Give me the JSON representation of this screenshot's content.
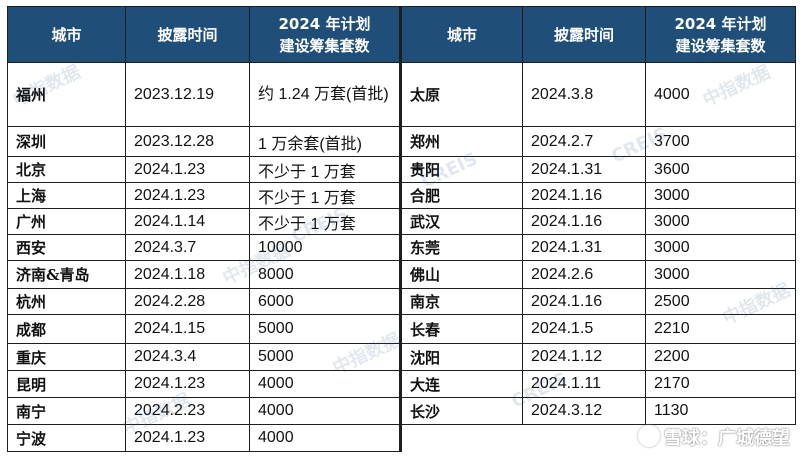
{
  "headers": {
    "city": "城市",
    "date": "披露时间",
    "plan_line1": "2024 年计划",
    "plan_line2": "建设筹集套数"
  },
  "left_rows": [
    {
      "city": "福州",
      "date": "2023.12.19",
      "plan": "约 1.24 万套(首批)"
    },
    {
      "city": "深圳",
      "date": "2023.12.28",
      "plan": "1 万余套(首批)"
    },
    {
      "city": "北京",
      "date": "2024.1.23",
      "plan": "不少于 1 万套"
    },
    {
      "city": "上海",
      "date": "2024.1.23",
      "plan": "不少于 1 万套"
    },
    {
      "city": "广州",
      "date": "2024.1.14",
      "plan": "不少于 1 万套"
    },
    {
      "city": "西安",
      "date": "2024.3.7",
      "plan": "10000"
    },
    {
      "city": "济南&青岛",
      "date": "2024.1.18",
      "plan": "8000"
    },
    {
      "city": "杭州",
      "date": "2024.2.28",
      "plan": "6000"
    },
    {
      "city": "成都",
      "date": "2024.1.15",
      "plan": "5000"
    },
    {
      "city": "重庆",
      "date": "2024.3.4",
      "plan": "5000"
    },
    {
      "city": "昆明",
      "date": "2024.1.23",
      "plan": "4000"
    },
    {
      "city": "南宁",
      "date": "2024.2.23",
      "plan": "4000"
    },
    {
      "city": "宁波",
      "date": "2024.1.23",
      "plan": "4000"
    }
  ],
  "right_rows": [
    {
      "city": "太原",
      "date": "2024.3.8",
      "plan": "4000"
    },
    {
      "city": "郑州",
      "date": "2024.2.7",
      "plan": "3700"
    },
    {
      "city": "贵阳",
      "date": "2024.1.31",
      "plan": "3600"
    },
    {
      "city": "合肥",
      "date": "2024.1.16",
      "plan": "3000"
    },
    {
      "city": "武汉",
      "date": "2024.1.16",
      "plan": "3000"
    },
    {
      "city": "东莞",
      "date": "2024.1.31",
      "plan": "3000"
    },
    {
      "city": "佛山",
      "date": "2024.2.6",
      "plan": "3000"
    },
    {
      "city": "南京",
      "date": "2024.1.16",
      "plan": "2500"
    },
    {
      "city": "长春",
      "date": "2024.1.5",
      "plan": "2210"
    },
    {
      "city": "沈阳",
      "date": "2024.1.12",
      "plan": "2200"
    },
    {
      "city": "大连",
      "date": "2024.1.11",
      "plan": "2170"
    },
    {
      "city": "长沙",
      "date": "2024.3.12",
      "plan": "1130"
    }
  ],
  "watermark": {
    "cn": "中指数据",
    "en": "CREIS"
  },
  "footer": {
    "text": "雪球：广城德望"
  },
  "colors": {
    "header_bg": "#1f4e79",
    "header_text": "#ffffff",
    "border": "#1e1e1e"
  }
}
